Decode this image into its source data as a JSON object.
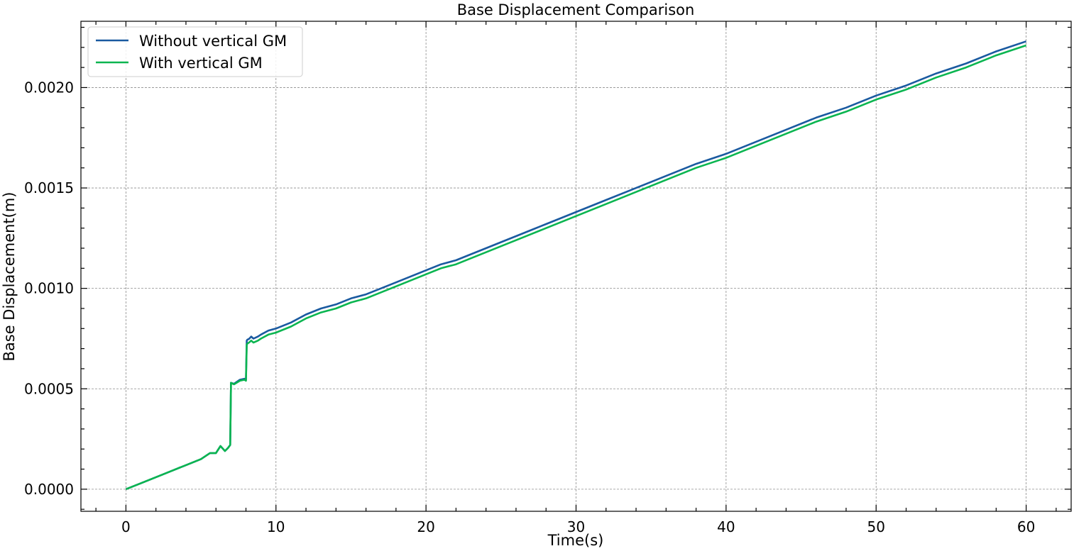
{
  "chart_data": {
    "type": "line",
    "title": "Base Displacement Comparison",
    "xlabel": "Time(s)",
    "ylabel": "Base Displacement(m)",
    "xlim": [
      -3,
      63
    ],
    "ylim": [
      -0.00011,
      0.00233
    ],
    "xticks": [
      0,
      10,
      20,
      30,
      40,
      50,
      60
    ],
    "xtick_labels": [
      "0",
      "10",
      "20",
      "30",
      "40",
      "50",
      "60"
    ],
    "yticks": [
      0.0,
      0.0005,
      0.001,
      0.0015,
      0.002
    ],
    "ytick_labels": [
      "0.0000",
      "0.0005",
      "0.0010",
      "0.0015",
      "0.0020"
    ],
    "grid": true,
    "legend_position": "top-left",
    "series": [
      {
        "name": "Without vertical GM",
        "color": "#1a5aa0",
        "x": [
          0,
          1,
          2,
          3,
          4,
          5,
          5.6,
          6,
          6.3,
          6.6,
          6.8,
          6.95,
          7.0,
          7.2,
          7.6,
          7.9,
          8.0,
          8.05,
          8.1,
          8.2,
          8.35,
          8.5,
          8.8,
          9.0,
          9.5,
          10,
          11,
          12,
          13,
          14,
          15,
          16,
          17,
          18,
          19,
          20,
          21,
          22,
          23,
          24,
          25,
          26,
          27,
          28,
          29,
          30,
          32,
          34,
          36,
          38,
          40,
          42,
          44,
          46,
          48,
          50,
          52,
          54,
          56,
          58,
          60
        ],
        "y": [
          0,
          3e-05,
          6e-05,
          9e-05,
          0.00012,
          0.00015,
          0.00018,
          0.00018,
          0.000215,
          0.00019,
          0.000205,
          0.00022,
          0.00053,
          0.000525,
          0.000545,
          0.00055,
          0.000545,
          0.00074,
          0.000745,
          0.000748,
          0.00076,
          0.00075,
          0.00076,
          0.00077,
          0.00079,
          0.0008,
          0.00083,
          0.00087,
          0.0009,
          0.00092,
          0.00095,
          0.00097,
          0.001,
          0.00103,
          0.00106,
          0.00109,
          0.00112,
          0.00114,
          0.00117,
          0.0012,
          0.00123,
          0.00126,
          0.00129,
          0.00132,
          0.00135,
          0.00138,
          0.00144,
          0.0015,
          0.00156,
          0.00162,
          0.00167,
          0.00173,
          0.00179,
          0.00185,
          0.0019,
          0.00196,
          0.00201,
          0.00207,
          0.00212,
          0.00218,
          0.00223
        ]
      },
      {
        "name": "With vertical GM",
        "color": "#0ab550",
        "x": [
          0,
          1,
          2,
          3,
          4,
          5,
          5.6,
          6,
          6.3,
          6.6,
          6.8,
          6.95,
          7.0,
          7.2,
          7.6,
          7.9,
          8.0,
          8.05,
          8.1,
          8.2,
          8.35,
          8.5,
          8.8,
          9.0,
          9.5,
          10,
          11,
          12,
          13,
          14,
          15,
          16,
          17,
          18,
          19,
          20,
          21,
          22,
          23,
          24,
          25,
          26,
          27,
          28,
          29,
          30,
          32,
          34,
          36,
          38,
          40,
          42,
          44,
          46,
          48,
          50,
          52,
          54,
          56,
          58,
          60
        ],
        "y": [
          0,
          3e-05,
          6e-05,
          9e-05,
          0.00012,
          0.00015,
          0.00018,
          0.00018,
          0.000215,
          0.00019,
          0.000205,
          0.00022,
          0.00053,
          0.000522,
          0.00054,
          0.000545,
          0.00054,
          0.00072,
          0.000725,
          0.00073,
          0.00074,
          0.00073,
          0.00074,
          0.00075,
          0.00077,
          0.00078,
          0.00081,
          0.00085,
          0.00088,
          0.0009,
          0.00093,
          0.00095,
          0.00098,
          0.00101,
          0.00104,
          0.00107,
          0.0011,
          0.00112,
          0.00115,
          0.00118,
          0.00121,
          0.00124,
          0.00127,
          0.0013,
          0.00133,
          0.00136,
          0.00142,
          0.00148,
          0.00154,
          0.0016,
          0.00165,
          0.00171,
          0.00177,
          0.00183,
          0.00188,
          0.00194,
          0.00199,
          0.00205,
          0.0021,
          0.00216,
          0.00221
        ]
      }
    ]
  }
}
